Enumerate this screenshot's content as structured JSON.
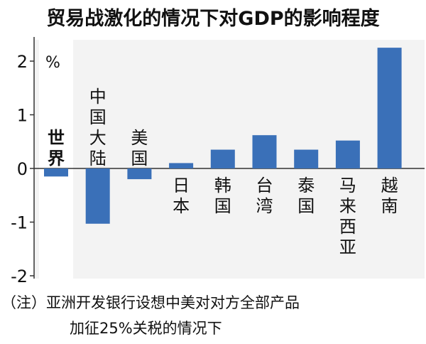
{
  "chart_data": {
    "type": "bar",
    "title": "贸易战激化的情况下对GDP的影响程度",
    "unit_label": "%",
    "categories": [
      "世界",
      "中国大陆",
      "美国",
      "日本",
      "韩国",
      "台湾",
      "泰国",
      "马来西亚",
      "越南"
    ],
    "values": [
      -0.15,
      -1.03,
      -0.2,
      0.1,
      0.35,
      0.62,
      0.35,
      0.52,
      2.25
    ],
    "ylim": [
      -2,
      2.2
    ],
    "yticks": [
      2,
      1,
      0,
      -1,
      -2
    ],
    "ytick_labels": [
      "2",
      "1",
      "0",
      "-1",
      "-2"
    ],
    "grid": false,
    "bar_color": "#3a70b8",
    "plot_background": "#f3f3f3",
    "highlight_category": "世界"
  },
  "note": {
    "line1": "（注）亚洲开发银行设想中美对对方全部产品",
    "line2": "加征25%关税的情况下"
  }
}
